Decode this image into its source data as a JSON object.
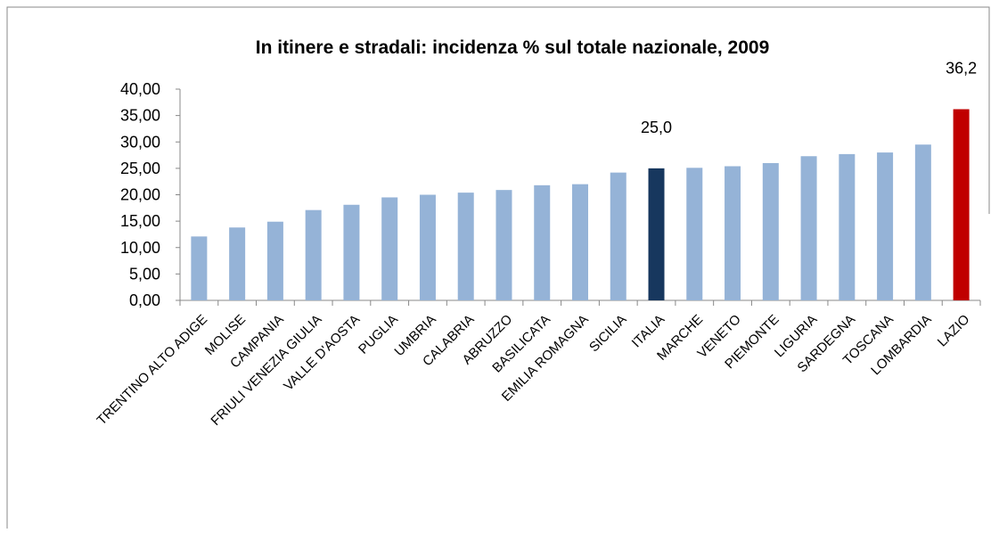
{
  "chart_data": {
    "type": "bar",
    "title": "In itinere e stradali: incidenza % sul totale nazionale, 2009",
    "categories": [
      "TRENTINO ALTO ADIGE",
      "MOLISE",
      "CAMPANIA",
      "FRIULI VENEZIA GIULIA",
      "VALLE D'AOSTA",
      "PUGLIA",
      "UMBRIA",
      "CALABRIA",
      "ABRUZZO",
      "BASILICATA",
      "EMILIA ROMAGNA",
      "SICILIA",
      "ITALIA",
      "MARCHE",
      "VENETO",
      "PIEMONTE",
      "LIGURIA",
      "SARDEGNA",
      "TOSCANA",
      "LOMBARDIA",
      "LAZIO"
    ],
    "values": [
      12.1,
      13.8,
      14.9,
      17.1,
      18.1,
      19.5,
      20.0,
      20.4,
      20.9,
      21.8,
      22.0,
      24.2,
      25.0,
      25.1,
      25.4,
      26.0,
      27.3,
      27.7,
      28.0,
      29.5,
      36.2
    ],
    "value_labels": [
      null,
      null,
      null,
      null,
      null,
      null,
      null,
      null,
      null,
      null,
      null,
      null,
      "25,0",
      null,
      null,
      null,
      null,
      null,
      null,
      null,
      "36,2"
    ],
    "colors": [
      "#95b3d7",
      "#95b3d7",
      "#95b3d7",
      "#95b3d7",
      "#95b3d7",
      "#95b3d7",
      "#95b3d7",
      "#95b3d7",
      "#95b3d7",
      "#95b3d7",
      "#95b3d7",
      "#95b3d7",
      "#17375e",
      "#95b3d7",
      "#95b3d7",
      "#95b3d7",
      "#95b3d7",
      "#95b3d7",
      "#95b3d7",
      "#95b3d7",
      "#c00000"
    ],
    "ylim": [
      0,
      40
    ],
    "yticks": [
      {
        "value": 0,
        "label": "0,00"
      },
      {
        "value": 5,
        "label": "5,00"
      },
      {
        "value": 10,
        "label": "10,00"
      },
      {
        "value": 15,
        "label": "15,00"
      },
      {
        "value": 20,
        "label": "20,00"
      },
      {
        "value": 25,
        "label": "25,00"
      },
      {
        "value": 30,
        "label": "30,00"
      },
      {
        "value": 35,
        "label": "35,00"
      },
      {
        "value": 40,
        "label": "40,00"
      }
    ],
    "grid": false
  }
}
